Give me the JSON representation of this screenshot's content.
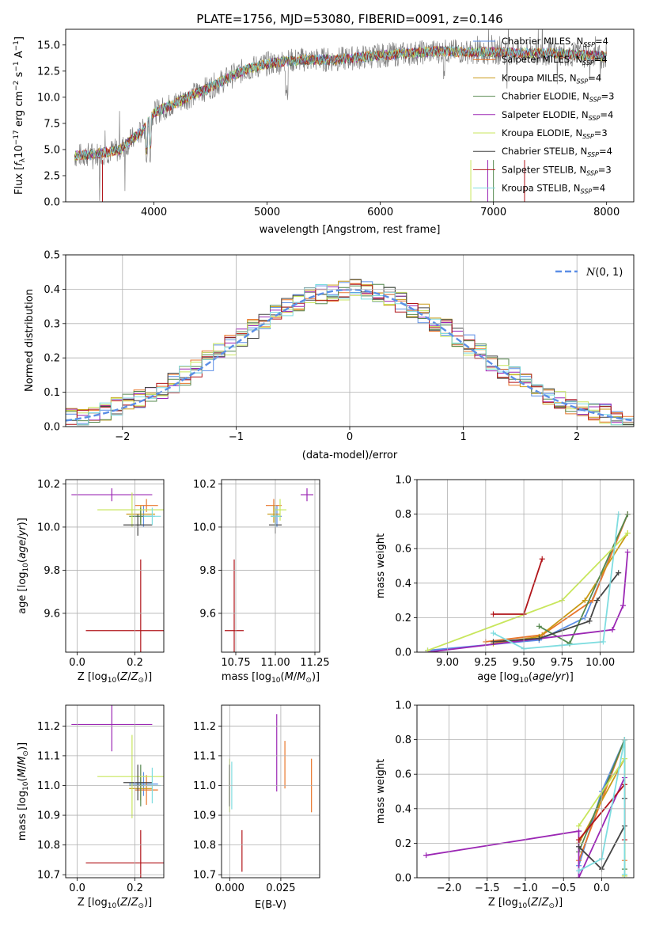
{
  "figure": {
    "title": "PLATE=1756, MJD=53080, FIBERID=0091, z=0.146"
  },
  "models": [
    {
      "name": "Chabrier MILES, N$_{SSP}$=4",
      "label": "Chabrier MILES, N",
      "sub": "SSP",
      "suffix": "=4",
      "color": "#5b8ee6"
    },
    {
      "name": "Salpeter MILES, N$_{SSP}$=4",
      "label": "Salpeter MILES, N",
      "sub": "SSP",
      "suffix": "=4",
      "color": "#e8762b"
    },
    {
      "name": "Kroupa MILES, N$_{SSP}$=4",
      "label": "Kroupa MILES, N",
      "sub": "SSP",
      "suffix": "=4",
      "color": "#c99a16"
    },
    {
      "name": "Chabrier ELODIE, N$_{SSP}$=3",
      "label": "Chabrier ELODIE, N",
      "sub": "SSP",
      "suffix": "=3",
      "color": "#55884e"
    },
    {
      "name": "Salpeter ELODIE, N$_{SSP}$=4",
      "label": "Salpeter ELODIE, N",
      "sub": "SSP",
      "suffix": "=4",
      "color": "#9b27b4"
    },
    {
      "name": "Kroupa ELODIE, N$_{SSP}$=3",
      "label": "Kroupa ELODIE, N",
      "sub": "SSP",
      "suffix": "=3",
      "color": "#c8e65c"
    },
    {
      "name": "Chabrier STELIB, N$_{SSP}$=4",
      "label": "Chabrier STELIB, N",
      "sub": "SSP",
      "suffix": "=4",
      "color": "#444444"
    },
    {
      "name": "Salpeter STELIB, N$_{SSP}$=3",
      "label": "Salpeter STELIB, N",
      "sub": "SSP",
      "suffix": "=3",
      "color": "#b1151a"
    },
    {
      "name": "Kroupa STELIB, N$_{SSP}$=4",
      "label": "Kroupa STELIB, N",
      "sub": "SSP",
      "suffix": "=4",
      "color": "#7fdde0"
    }
  ],
  "chart_data": [
    {
      "id": "spectrum",
      "type": "line",
      "xlabel": "wavelength [Angstrom, rest frame]",
      "ylabel": "Flux [f$_\\lambda$10$^{-17}$ erg cm$^{-2}$ s$^{-1}$ A$^{-1}$]",
      "xlim": [
        3220,
        8240
      ],
      "ylim": [
        0,
        16.5
      ],
      "xticks": [
        4000,
        5000,
        6000,
        7000,
        8000
      ],
      "yticks": [
        "0.0",
        "2.5",
        "5.0",
        "7.5",
        "10.0",
        "12.5",
        "15.0"
      ],
      "grid": false,
      "legend": "right",
      "continuum": {
        "x": [
          3300,
          3500,
          3700,
          3900,
          4000,
          4200,
          4500,
          4800,
          5000,
          5300,
          5600,
          6000,
          6500,
          7000,
          7500,
          8000
        ],
        "y": [
          4.4,
          4.6,
          5.0,
          6.8,
          8.5,
          9.5,
          11.0,
          12.6,
          13.2,
          13.6,
          13.6,
          14.0,
          14.4,
          14.3,
          14.2,
          13.9
        ]
      },
      "data_color": "#808080"
    },
    {
      "id": "residuals",
      "type": "bar",
      "xlabel": "(data-model)/error",
      "ylabel": "Normed distribution",
      "xlim": [
        -2.5,
        2.5
      ],
      "ylim": [
        0,
        0.5
      ],
      "xticks": [
        -2,
        -1,
        0,
        1,
        2
      ],
      "xticklabels": [
        "−2",
        "−1",
        "0",
        "1",
        "2"
      ],
      "yticks": [
        "0.0",
        "0.1",
        "0.2",
        "0.3",
        "0.4",
        "0.5"
      ],
      "grid": true,
      "bin_width": 0.1,
      "reference_curve": {
        "name": "$\\mathcal{N}(0,1)$",
        "label": "(0, 1)",
        "color": "#5b8ee6"
      },
      "legend": "top-right"
    },
    {
      "id": "age-vs-Z",
      "type": "scatter",
      "xlabel": "Z [log$_{10}$(Z/Z$_\\odot$)]",
      "ylabel": "age  [log$_{10}$(age/yr)]",
      "xlim": [
        -0.04,
        0.3
      ],
      "ylim": [
        9.42,
        10.22
      ],
      "xticks": [
        "0.0",
        "0.2"
      ],
      "yticks": [
        "9.6",
        "9.8",
        "10.0",
        "10.2"
      ],
      "grid": true,
      "points": [
        {
          "model": 0,
          "x": 0.23,
          "y": 10.05,
          "xerr": 0.04,
          "yerr": 0.05
        },
        {
          "model": 1,
          "x": 0.24,
          "y": 10.1,
          "xerr": 0.04,
          "yerr": 0.03
        },
        {
          "model": 2,
          "x": 0.22,
          "y": 10.06,
          "xerr": 0.05,
          "yerr": 0.04
        },
        {
          "model": 3,
          "x": 0.22,
          "y": 10.05,
          "xerr": 0.04,
          "yerr": 0.04
        },
        {
          "model": 4,
          "x": 0.12,
          "y": 10.15,
          "xerr": 0.14,
          "yerr": 0.03
        },
        {
          "model": 5,
          "x": 0.19,
          "y": 10.08,
          "xerr": 0.12,
          "yerr": 0.08
        },
        {
          "model": 6,
          "x": 0.21,
          "y": 10.01,
          "xerr": 0.05,
          "yerr": 0.05
        },
        {
          "model": 7,
          "x": 0.22,
          "y": 9.52,
          "xerr": 0.19,
          "yerr": 0.33
        },
        {
          "model": 8,
          "x": 0.26,
          "y": 10.05,
          "xerr": 0.03,
          "yerr": 0.04
        }
      ]
    },
    {
      "id": "age-vs-mass",
      "type": "scatter",
      "xlabel": "mass [log$_{10}$(M/M$_\\odot$)]",
      "ylabel": "",
      "xlim": [
        10.66,
        11.28
      ],
      "ylim": [
        9.42,
        10.22
      ],
      "xticks": [
        "10.75",
        "11.00",
        "11.25"
      ],
      "yticks": [
        "9.6",
        "9.8",
        "10.0",
        "10.2"
      ],
      "grid": true,
      "points": [
        {
          "model": 0,
          "x": 11.01,
          "y": 10.05,
          "xerr": 0.03,
          "yerr": 0.05
        },
        {
          "model": 1,
          "x": 10.99,
          "y": 10.1,
          "xerr": 0.05,
          "yerr": 0.03
        },
        {
          "model": 2,
          "x": 10.99,
          "y": 10.06,
          "xerr": 0.04,
          "yerr": 0.04
        },
        {
          "model": 3,
          "x": 11.0,
          "y": 10.05,
          "xerr": 0.03,
          "yerr": 0.04
        },
        {
          "model": 4,
          "x": 11.2,
          "y": 10.15,
          "xerr": 0.04,
          "yerr": 0.03
        },
        {
          "model": 5,
          "x": 11.03,
          "y": 10.08,
          "xerr": 0.04,
          "yerr": 0.05
        },
        {
          "model": 6,
          "x": 11.0,
          "y": 10.01,
          "xerr": 0.04,
          "yerr": 0.04
        },
        {
          "model": 7,
          "x": 10.74,
          "y": 9.52,
          "xerr": 0.06,
          "yerr": 0.33
        },
        {
          "model": 8,
          "x": 11.0,
          "y": 10.05,
          "xerr": 0.03,
          "yerr": 0.05
        }
      ]
    },
    {
      "id": "weight-vs-age",
      "type": "line",
      "xlabel": "age  [log$_{10}$(age/yr)]",
      "ylabel": "mass weight",
      "xlim": [
        8.8,
        10.22
      ],
      "ylim": [
        0,
        1.0
      ],
      "xticks": [
        "9.00",
        "9.25",
        "9.50",
        "9.75",
        "10.00"
      ],
      "yticks": [
        "0.0",
        "0.2",
        "0.4",
        "0.6",
        "0.8",
        "1.0"
      ],
      "grid": true,
      "series": [
        {
          "model": 0,
          "x": [
            8.87,
            9.6,
            9.9,
            10.18
          ],
          "y": [
            0.01,
            0.07,
            0.2,
            0.8
          ]
        },
        {
          "model": 1,
          "x": [
            9.25,
            9.62,
            9.95,
            10.18
          ],
          "y": [
            0.06,
            0.1,
            0.3,
            0.8
          ]
        },
        {
          "model": 2,
          "x": [
            9.3,
            9.6,
            9.9,
            10.18
          ],
          "y": [
            0.05,
            0.09,
            0.3,
            0.69
          ]
        },
        {
          "model": 3,
          "x": [
            9.6,
            9.8,
            10.18
          ],
          "y": [
            0.15,
            0.05,
            0.8
          ]
        },
        {
          "model": 4,
          "x": [
            8.87,
            10.08,
            10.15,
            10.18
          ],
          "y": [
            0.0,
            0.13,
            0.27,
            0.58
          ]
        },
        {
          "model": 5,
          "x": [
            8.87,
            9.75,
            10.18
          ],
          "y": [
            0.01,
            0.3,
            0.69
          ]
        },
        {
          "model": 6,
          "x": [
            9.3,
            9.6,
            9.93,
            9.98,
            10.12
          ],
          "y": [
            0.06,
            0.08,
            0.18,
            0.3,
            0.46
          ]
        },
        {
          "model": 7,
          "x": [
            9.3,
            9.5,
            9.62
          ],
          "y": [
            0.22,
            0.22,
            0.54
          ]
        },
        {
          "model": 8,
          "x": [
            9.3,
            9.5,
            9.75,
            10.02,
            10.12
          ],
          "y": [
            0.11,
            0.02,
            0.04,
            0.06,
            0.8
          ]
        }
      ]
    },
    {
      "id": "mass-vs-Z",
      "type": "scatter",
      "xlabel": "Z [log$_{10}$(Z/Z$_\\odot$)]",
      "ylabel": "mass [log$_{10}$(M/M$_\\odot$)]",
      "xlim": [
        -0.04,
        0.3
      ],
      "ylim": [
        10.69,
        11.27
      ],
      "xticks": [
        "0.0",
        "0.2"
      ],
      "yticks": [
        "10.7",
        "10.8",
        "10.9",
        "11.0",
        "11.1",
        "11.2"
      ],
      "grid": true,
      "points": [
        {
          "model": 0,
          "x": 0.23,
          "y": 11.005,
          "xerr": 0.05,
          "yerr": 0.04
        },
        {
          "model": 1,
          "x": 0.24,
          "y": 10.985,
          "xerr": 0.04,
          "yerr": 0.05
        },
        {
          "model": 2,
          "x": 0.22,
          "y": 10.99,
          "xerr": 0.04,
          "yerr": 0.04
        },
        {
          "model": 3,
          "x": 0.22,
          "y": 11.0,
          "xerr": 0.04,
          "yerr": 0.07
        },
        {
          "model": 4,
          "x": 0.12,
          "y": 11.205,
          "xerr": 0.14,
          "yerr": 0.09
        },
        {
          "model": 5,
          "x": 0.19,
          "y": 11.03,
          "xerr": 0.12,
          "yerr": 0.14
        },
        {
          "model": 6,
          "x": 0.21,
          "y": 11.01,
          "xerr": 0.05,
          "yerr": 0.06
        },
        {
          "model": 7,
          "x": 0.22,
          "y": 10.74,
          "xerr": 0.19,
          "yerr": 0.11
        },
        {
          "model": 8,
          "x": 0.26,
          "y": 11.0,
          "xerr": 0.03,
          "yerr": 0.06
        }
      ]
    },
    {
      "id": "mass-vs-EBV",
      "type": "scatter",
      "xlabel": "E(B-V)",
      "ylabel": "",
      "xlim": [
        -0.004,
        0.044
      ],
      "ylim": [
        10.69,
        11.27
      ],
      "xticks": [
        "0.000",
        "0.025"
      ],
      "yticks": [
        "10.7",
        "10.8",
        "10.9",
        "11.0",
        "11.1",
        "11.2"
      ],
      "grid": true,
      "points": [
        {
          "model": 0,
          "x": 0.0,
          "y": 11.0,
          "xerr": 0.0,
          "yerr": 0.05
        },
        {
          "model": 1,
          "x": 0.04,
          "y": 11.0,
          "xerr": 0.0,
          "yerr": 0.09
        },
        {
          "model": 2,
          "x": 0.0,
          "y": 10.99,
          "xerr": 0.0,
          "yerr": 0.05
        },
        {
          "model": 3,
          "x": 0.0,
          "y": 11.0,
          "xerr": 0.0,
          "yerr": 0.07
        },
        {
          "model": 4,
          "x": 0.023,
          "y": 11.11,
          "xerr": 0.0,
          "yerr": 0.13
        },
        {
          "model": 5,
          "x": 0.0,
          "y": 11.0,
          "xerr": 0.0,
          "yerr": 0.09
        },
        {
          "model": 6,
          "x": 0.0,
          "y": 11.0,
          "xerr": 0.0,
          "yerr": 0.07
        },
        {
          "model": 7,
          "x": 0.006,
          "y": 10.78,
          "xerr": 0.0,
          "yerr": 0.07
        },
        {
          "model": 8,
          "x": 0.001,
          "y": 11.0,
          "xerr": 0.0,
          "yerr": 0.08
        },
        {
          "model": 1,
          "x": 0.027,
          "y": 11.07,
          "xerr": 0.0,
          "yerr": 0.08
        }
      ]
    },
    {
      "id": "weight-vs-Z",
      "type": "line",
      "xlabel": "Z [log$_{10}$(Z/Z$_\\odot$)]",
      "ylabel": "mass weight",
      "xlim": [
        -2.42,
        0.42
      ],
      "ylim": [
        0,
        1.0
      ],
      "xticks": [
        "−2.0",
        "−1.5",
        "−1.0",
        "−0.5",
        "0.0"
      ],
      "xtickvals": [
        -2.0,
        -1.5,
        -1.0,
        -0.5,
        0.0
      ],
      "yticks": [
        "0.0",
        "0.2",
        "0.4",
        "0.6",
        "0.8",
        "1.0"
      ],
      "grid": true,
      "series": [
        {
          "model": 0,
          "x": [
            -0.3,
            0.0,
            0.3
          ],
          "y": [
            0.07,
            0.5,
            0.8
          ]
        },
        {
          "model": 1,
          "x": [
            -0.3,
            0.3,
            0.3
          ],
          "y": [
            0.1,
            0.8,
            0.1
          ]
        },
        {
          "model": 2,
          "x": [
            -0.3,
            0.3,
            0.3
          ],
          "y": [
            0.2,
            0.69,
            0.01
          ]
        },
        {
          "model": 3,
          "x": [
            -0.3,
            0.3,
            0.3
          ],
          "y": [
            0.15,
            0.8,
            0.05
          ]
        },
        {
          "model": 4,
          "x": [
            -2.3,
            -0.3,
            -0.3,
            0.3
          ],
          "y": [
            0.13,
            0.27,
            0.0,
            0.58
          ]
        },
        {
          "model": 5,
          "x": [
            -0.3,
            0.3,
            0.3
          ],
          "y": [
            0.3,
            0.69,
            0.01
          ]
        },
        {
          "model": 6,
          "x": [
            -0.3,
            0.0,
            0.3,
            0.3
          ],
          "y": [
            0.18,
            0.05,
            0.3,
            0.46
          ]
        },
        {
          "model": 7,
          "x": [
            -0.3,
            0.3,
            0.3
          ],
          "y": [
            0.22,
            0.54,
            0.22
          ]
        },
        {
          "model": 8,
          "x": [
            -0.3,
            0.0,
            0.3,
            0.3
          ],
          "y": [
            0.04,
            0.11,
            0.8,
            0.02
          ]
        }
      ]
    }
  ]
}
